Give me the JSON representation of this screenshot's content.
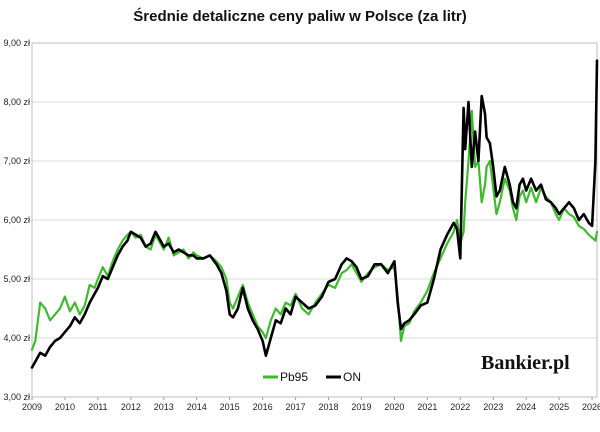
{
  "chart_data": {
    "type": "line",
    "title": "Średnie detaliczne ceny paliw w Polsce (za litr)",
    "xlabel": "",
    "ylabel": "",
    "xlim": [
      2009.0,
      2026.15
    ],
    "ylim": [
      3.0,
      9.0
    ],
    "x_ticks": [
      "2009",
      "2010",
      "2011",
      "2012",
      "2013",
      "2014",
      "2015",
      "2016",
      "2017",
      "2018",
      "2019",
      "2020",
      "2021",
      "2022",
      "2023",
      "2024",
      "2025",
      "2026"
    ],
    "y_ticks": [
      "3,00 zł",
      "4,00 zł",
      "5,00 zł",
      "6,00 zł",
      "7,00 zł",
      "8,00 zł",
      "9,00 zł"
    ],
    "y_tick_values": [
      3,
      4,
      5,
      6,
      7,
      8,
      9
    ],
    "grid": true,
    "legend_position": "bottom-center",
    "watermark": "Bankier.pl",
    "series": [
      {
        "name": "Pb95",
        "color": "#3dbb2d",
        "x": [
          2009.0,
          2009.1,
          2009.25,
          2009.4,
          2009.55,
          2009.7,
          2009.85,
          2010.0,
          2010.15,
          2010.3,
          2010.45,
          2010.6,
          2010.75,
          2010.9,
          2011.0,
          2011.15,
          2011.3,
          2011.45,
          2011.6,
          2011.75,
          2011.9,
          2012.0,
          2012.15,
          2012.3,
          2012.45,
          2012.6,
          2012.75,
          2012.9,
          2013.0,
          2013.15,
          2013.3,
          2013.45,
          2013.6,
          2013.75,
          2013.9,
          2014.0,
          2014.2,
          2014.4,
          2014.6,
          2014.75,
          2014.9,
          2015.0,
          2015.1,
          2015.25,
          2015.4,
          2015.55,
          2015.7,
          2015.85,
          2016.0,
          2016.1,
          2016.25,
          2016.4,
          2016.55,
          2016.7,
          2016.85,
          2017.0,
          2017.2,
          2017.4,
          2017.6,
          2017.8,
          2018.0,
          2018.2,
          2018.4,
          2018.55,
          2018.7,
          2018.85,
          2019.0,
          2019.2,
          2019.4,
          2019.6,
          2019.8,
          2020.0,
          2020.1,
          2020.2,
          2020.3,
          2020.45,
          2020.6,
          2020.8,
          2021.0,
          2021.2,
          2021.4,
          2021.6,
          2021.8,
          2021.9,
          2022.0,
          2022.1,
          2022.15,
          2022.25,
          2022.35,
          2022.45,
          2022.55,
          2022.65,
          2022.75,
          2022.8,
          2022.9,
          2023.0,
          2023.1,
          2023.2,
          2023.35,
          2023.5,
          2023.6,
          2023.7,
          2023.8,
          2023.9,
          2024.0,
          2024.15,
          2024.3,
          2024.45,
          2024.6,
          2024.75,
          2024.9,
          2025.0,
          2025.15,
          2025.3,
          2025.45,
          2025.6,
          2025.75,
          2025.9,
          2026.0,
          2026.1,
          2026.15
        ],
        "values": [
          3.8,
          3.95,
          4.6,
          4.5,
          4.3,
          4.4,
          4.5,
          4.7,
          4.45,
          4.6,
          4.4,
          4.55,
          4.9,
          4.85,
          5.0,
          5.2,
          5.05,
          5.3,
          5.5,
          5.65,
          5.75,
          5.8,
          5.7,
          5.75,
          5.55,
          5.5,
          5.75,
          5.6,
          5.5,
          5.7,
          5.4,
          5.45,
          5.5,
          5.35,
          5.45,
          5.4,
          5.35,
          5.4,
          5.3,
          5.2,
          5.0,
          4.6,
          4.5,
          4.7,
          4.9,
          4.6,
          4.4,
          4.2,
          4.1,
          4.0,
          4.3,
          4.5,
          4.4,
          4.6,
          4.55,
          4.75,
          4.5,
          4.4,
          4.6,
          4.75,
          4.9,
          4.85,
          5.1,
          5.15,
          5.25,
          5.1,
          4.95,
          5.1,
          5.2,
          5.25,
          5.15,
          5.2,
          4.7,
          3.95,
          4.2,
          4.25,
          4.45,
          4.6,
          4.8,
          5.1,
          5.35,
          5.6,
          5.8,
          6.0,
          5.6,
          5.8,
          6.3,
          7.0,
          7.85,
          6.9,
          7.0,
          6.3,
          6.6,
          6.9,
          7.0,
          6.55,
          6.1,
          6.3,
          6.7,
          6.5,
          6.2,
          6.0,
          6.4,
          6.5,
          6.3,
          6.55,
          6.3,
          6.55,
          6.4,
          6.3,
          6.1,
          6.0,
          6.2,
          6.1,
          6.05,
          5.9,
          5.85,
          5.75,
          5.7,
          5.65,
          5.8
        ]
      },
      {
        "name": "ON",
        "color": "#000000",
        "x": [
          2009.0,
          2009.1,
          2009.25,
          2009.4,
          2009.55,
          2009.7,
          2009.85,
          2010.0,
          2010.15,
          2010.3,
          2010.45,
          2010.6,
          2010.75,
          2010.9,
          2011.0,
          2011.15,
          2011.3,
          2011.45,
          2011.6,
          2011.75,
          2011.9,
          2012.0,
          2012.15,
          2012.3,
          2012.45,
          2012.6,
          2012.75,
          2012.9,
          2013.0,
          2013.15,
          2013.3,
          2013.45,
          2013.6,
          2013.75,
          2013.9,
          2014.0,
          2014.2,
          2014.4,
          2014.6,
          2014.75,
          2014.9,
          2015.0,
          2015.1,
          2015.25,
          2015.4,
          2015.55,
          2015.7,
          2015.85,
          2016.0,
          2016.1,
          2016.25,
          2016.4,
          2016.55,
          2016.7,
          2016.85,
          2017.0,
          2017.2,
          2017.4,
          2017.6,
          2017.8,
          2018.0,
          2018.2,
          2018.4,
          2018.55,
          2018.7,
          2018.85,
          2019.0,
          2019.2,
          2019.4,
          2019.6,
          2019.8,
          2020.0,
          2020.1,
          2020.2,
          2020.3,
          2020.45,
          2020.6,
          2020.8,
          2021.0,
          2021.2,
          2021.4,
          2021.6,
          2021.8,
          2021.9,
          2022.0,
          2022.1,
          2022.15,
          2022.25,
          2022.35,
          2022.45,
          2022.55,
          2022.65,
          2022.75,
          2022.8,
          2022.9,
          2023.0,
          2023.1,
          2023.2,
          2023.35,
          2023.5,
          2023.6,
          2023.7,
          2023.8,
          2023.9,
          2024.0,
          2024.15,
          2024.3,
          2024.45,
          2024.6,
          2024.75,
          2024.9,
          2025.0,
          2025.15,
          2025.3,
          2025.45,
          2025.6,
          2025.75,
          2025.9,
          2026.0,
          2026.1,
          2026.15
        ],
        "values": [
          3.5,
          3.6,
          3.75,
          3.7,
          3.85,
          3.95,
          4.0,
          4.1,
          4.2,
          4.35,
          4.25,
          4.4,
          4.6,
          4.75,
          4.85,
          5.05,
          5.0,
          5.2,
          5.4,
          5.55,
          5.65,
          5.8,
          5.75,
          5.7,
          5.55,
          5.6,
          5.8,
          5.65,
          5.55,
          5.6,
          5.45,
          5.5,
          5.45,
          5.4,
          5.4,
          5.35,
          5.35,
          5.4,
          5.25,
          5.1,
          4.8,
          4.4,
          4.35,
          4.5,
          4.85,
          4.5,
          4.3,
          4.15,
          3.95,
          3.7,
          4.0,
          4.3,
          4.25,
          4.5,
          4.4,
          4.7,
          4.6,
          4.5,
          4.55,
          4.7,
          4.95,
          5.0,
          5.25,
          5.35,
          5.3,
          5.2,
          5.0,
          5.05,
          5.25,
          5.25,
          5.1,
          5.3,
          4.6,
          4.15,
          4.25,
          4.3,
          4.4,
          4.55,
          4.6,
          5.0,
          5.5,
          5.75,
          5.95,
          5.85,
          5.35,
          7.9,
          7.2,
          8.0,
          6.9,
          7.5,
          7.0,
          8.1,
          7.8,
          7.4,
          7.3,
          6.9,
          6.4,
          6.5,
          6.9,
          6.6,
          6.3,
          6.2,
          6.6,
          6.7,
          6.5,
          6.7,
          6.5,
          6.6,
          6.35,
          6.3,
          6.2,
          6.1,
          6.2,
          6.3,
          6.2,
          6.0,
          6.1,
          5.95,
          5.9,
          7.0,
          8.7
        ]
      }
    ]
  }
}
